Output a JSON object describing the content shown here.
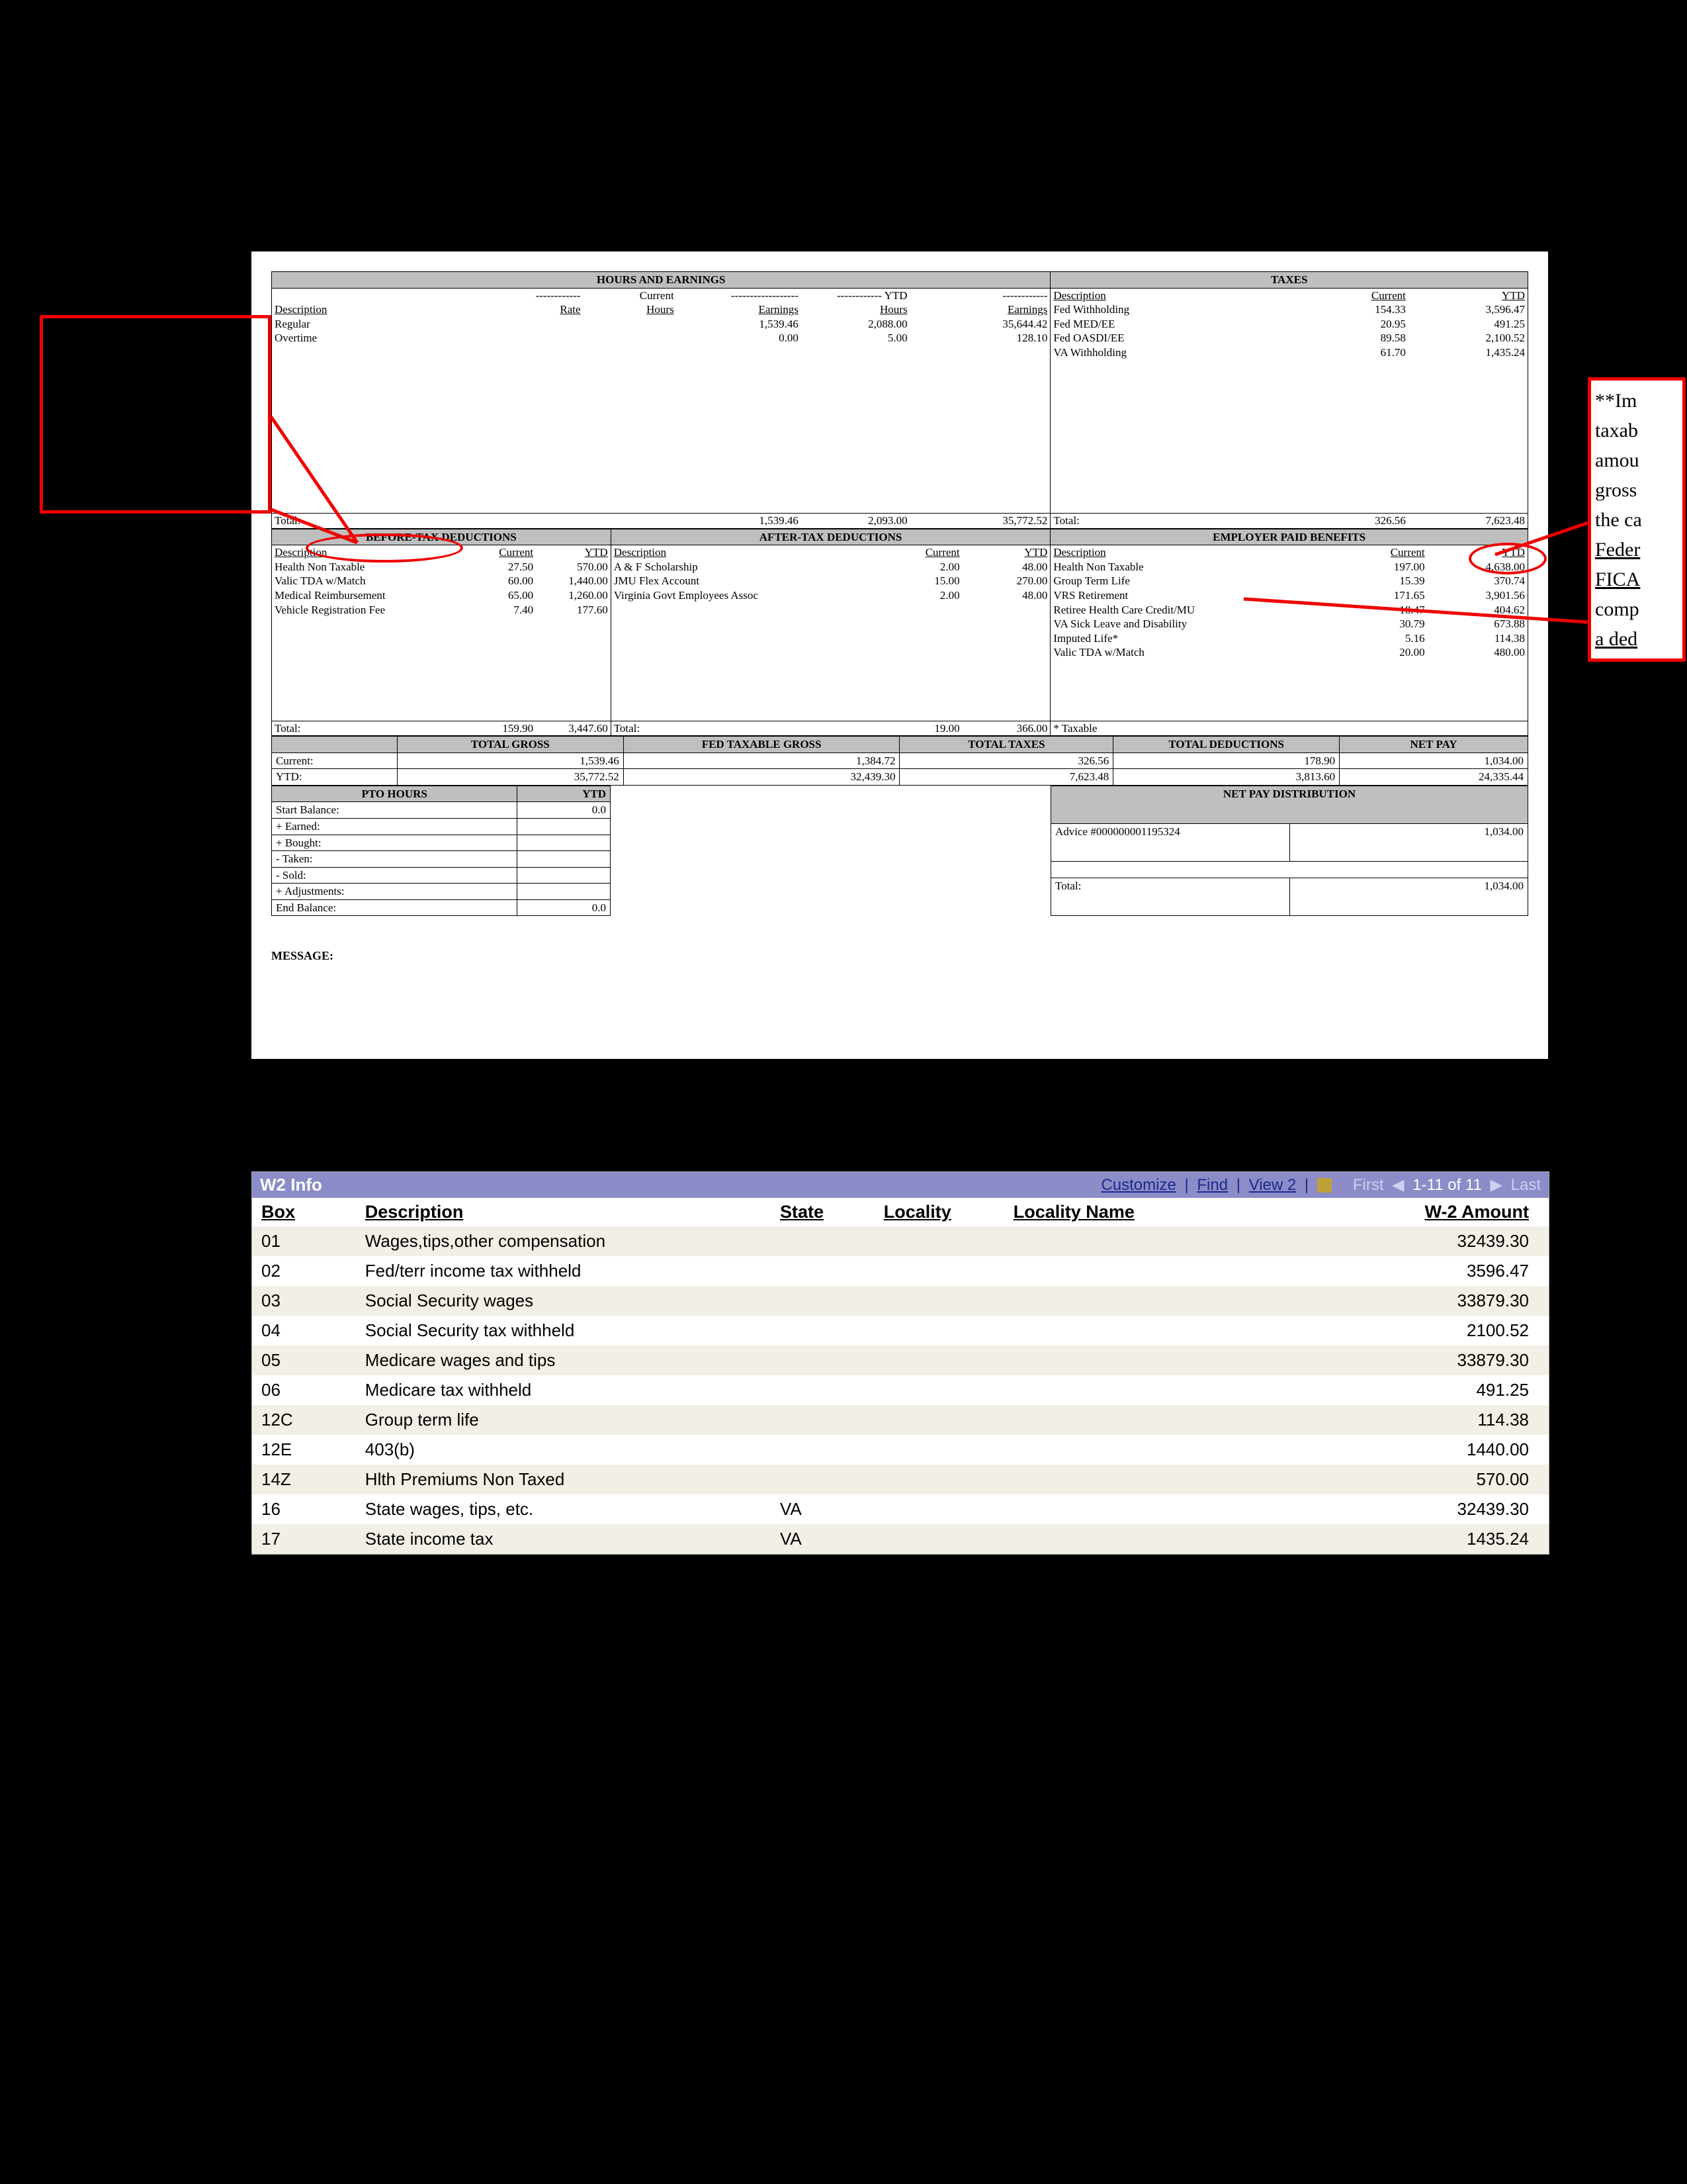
{
  "paystub": {
    "sections": {
      "hours_earnings": {
        "title": "HOURS AND EARNINGS",
        "col_desc": "Description",
        "col_rate": "Rate",
        "col_hours": "Hours",
        "col_earn": "Earnings",
        "current_label": "Current",
        "ytd_label": "YTD",
        "rows": [
          {
            "desc": "Regular",
            "rate": "",
            "c_hours": "",
            "c_earn": "1,539.46",
            "y_hours": "2,088.00",
            "y_earn": "35,644.42"
          },
          {
            "desc": "Overtime",
            "rate": "",
            "c_hours": "",
            "c_earn": "0.00",
            "y_hours": "5.00",
            "y_earn": "128.10"
          }
        ],
        "total_label": "Total:",
        "total_c_earn": "1,539.46",
        "total_y_hours": "2,093.00",
        "total_y_earn": "35,772.52"
      },
      "taxes": {
        "title": "TAXES",
        "col_desc": "Description",
        "col_cur": "Current",
        "col_ytd": "YTD",
        "rows": [
          {
            "desc": "Fed Withholding",
            "cur": "154.33",
            "ytd": "3,596.47"
          },
          {
            "desc": "Fed MED/EE",
            "cur": "20.95",
            "ytd": "491.25"
          },
          {
            "desc": "Fed OASDI/EE",
            "cur": "89.58",
            "ytd": "2,100.52"
          },
          {
            "desc": "VA Withholding",
            "cur": "61.70",
            "ytd": "1,435.24"
          }
        ],
        "total_label": "Total:",
        "total_cur": "326.56",
        "total_ytd": "7,623.48"
      },
      "before_tax": {
        "title": "BEFORE-TAX DEDUCTIONS",
        "col_desc": "Description",
        "col_cur": "Current",
        "col_ytd": "YTD",
        "rows": [
          {
            "desc": "Health Non Taxable",
            "cur": "27.50",
            "ytd": "570.00"
          },
          {
            "desc": "Valic TDA w/Match",
            "cur": "60.00",
            "ytd": "1,440.00"
          },
          {
            "desc": "Medical Reimbursement",
            "cur": "65.00",
            "ytd": "1,260.00"
          },
          {
            "desc": "Vehicle Registration Fee",
            "cur": "7.40",
            "ytd": "177.60"
          }
        ],
        "total_label": "Total:",
        "total_cur": "159.90",
        "total_ytd": "3,447.60"
      },
      "after_tax": {
        "title": "AFTER-TAX DEDUCTIONS",
        "col_desc": "Description",
        "col_cur": "Current",
        "col_ytd": "YTD",
        "rows": [
          {
            "desc": "A & F Scholarship",
            "cur": "2.00",
            "ytd": "48.00"
          },
          {
            "desc": "JMU Flex Account",
            "cur": "15.00",
            "ytd": "270.00"
          },
          {
            "desc": "Virginia Govt Employees Assoc",
            "cur": "2.00",
            "ytd": "48.00"
          }
        ],
        "total_label": "Total:",
        "total_cur": "19.00",
        "total_ytd": "366.00"
      },
      "employer_paid": {
        "title": "EMPLOYER PAID BENEFITS",
        "col_desc": "Description",
        "col_cur": "Current",
        "col_ytd": "YTD",
        "rows": [
          {
            "desc": "Health Non Taxable",
            "cur": "197.00",
            "ytd": "4,638.00"
          },
          {
            "desc": "Group Term Life",
            "cur": "15.39",
            "ytd": "370.74"
          },
          {
            "desc": "VRS Retirement",
            "cur": "171.65",
            "ytd": "3,901.56"
          },
          {
            "desc": "Retiree Health Care Credit/MU",
            "cur": "18.47",
            "ytd": "404.62"
          },
          {
            "desc": "VA Sick Leave and Disability",
            "cur": "30.79",
            "ytd": "673.88"
          },
          {
            "desc": "Imputed Life*",
            "cur": "5.16",
            "ytd": "114.38"
          },
          {
            "desc": "Valic TDA w/Match",
            "cur": "20.00",
            "ytd": "480.00"
          }
        ],
        "footnote": "* Taxable"
      }
    },
    "totals_bar": {
      "labels": {
        "gross": "TOTAL GROSS",
        "fed": "FED TAXABLE GROSS",
        "taxes": "TOTAL TAXES",
        "ded": "TOTAL DEDUCTIONS",
        "net": "NET PAY"
      },
      "current_label": "Current:",
      "ytd_label": "YTD:",
      "current": {
        "gross": "1,539.46",
        "fed": "1,384.72",
        "taxes": "326.56",
        "ded": "178.90",
        "net": "1,034.00"
      },
      "ytd": {
        "gross": "35,772.52",
        "fed": "32,439.30",
        "taxes": "7,623.48",
        "ded": "3,813.60",
        "net": "24,335.44"
      }
    },
    "pto": {
      "title": "PTO HOURS",
      "ytd_label": "YTD",
      "rows": [
        {
          "label": "Start Balance:",
          "val": "0.0"
        },
        {
          "label": "+ Earned:",
          "val": ""
        },
        {
          "label": "+ Bought:",
          "val": ""
        },
        {
          "label": "- Taken:",
          "val": ""
        },
        {
          "label": "- Sold:",
          "val": ""
        },
        {
          "label": "+ Adjustments:",
          "val": ""
        },
        {
          "label": "End Balance:",
          "val": "0.0"
        }
      ]
    },
    "netpay": {
      "title": "NET PAY DISTRIBUTION",
      "advice_label": "Advice #000000001195324",
      "advice_amt": "1,034.00",
      "total_label": "Total:",
      "total_amt": "1,034.00"
    },
    "message_label": "MESSAGE:"
  },
  "callouts": {
    "right_text_lines": [
      "**Im",
      "taxab",
      "amou",
      "gross",
      "the ca",
      "Feder",
      "FICA",
      "comp",
      "a ded"
    ]
  },
  "w2": {
    "title": "W2 Info",
    "links": {
      "customize": "Customize",
      "find": "Find",
      "view2": "View 2"
    },
    "nav": {
      "first": "First",
      "range": "1-11 of 11",
      "last": "Last"
    },
    "headers": {
      "box": "Box",
      "desc": "Description",
      "state": "State",
      "locality": "Locality",
      "locname": "Locality Name",
      "amount": "W-2 Amount"
    },
    "rows": [
      {
        "box": "01",
        "desc": "Wages,tips,other compensation",
        "state": "",
        "loc": "",
        "locname": "",
        "amt": "32439.30"
      },
      {
        "box": "02",
        "desc": "Fed/terr income tax withheld",
        "state": "",
        "loc": "",
        "locname": "",
        "amt": "3596.47"
      },
      {
        "box": "03",
        "desc": "Social Security wages",
        "state": "",
        "loc": "",
        "locname": "",
        "amt": "33879.30"
      },
      {
        "box": "04",
        "desc": "Social Security tax withheld",
        "state": "",
        "loc": "",
        "locname": "",
        "amt": "2100.52"
      },
      {
        "box": "05",
        "desc": "Medicare wages and tips",
        "state": "",
        "loc": "",
        "locname": "",
        "amt": "33879.30"
      },
      {
        "box": "06",
        "desc": "Medicare tax withheld",
        "state": "",
        "loc": "",
        "locname": "",
        "amt": "491.25"
      },
      {
        "box": "12C",
        "desc": "Group term life",
        "state": "",
        "loc": "",
        "locname": "",
        "amt": "114.38"
      },
      {
        "box": "12E",
        "desc": "403(b)",
        "state": "",
        "loc": "",
        "locname": "",
        "amt": "1440.00"
      },
      {
        "box": "14Z",
        "desc": "Hlth Premiums Non Taxed",
        "state": "",
        "loc": "",
        "locname": "",
        "amt": "570.00"
      },
      {
        "box": "16",
        "desc": "State wages, tips, etc.",
        "state": "VA",
        "loc": "",
        "locname": "",
        "amt": "32439.30"
      },
      {
        "box": "17",
        "desc": "State income tax",
        "state": "VA",
        "loc": "",
        "locname": "",
        "amt": "1435.24"
      }
    ]
  }
}
